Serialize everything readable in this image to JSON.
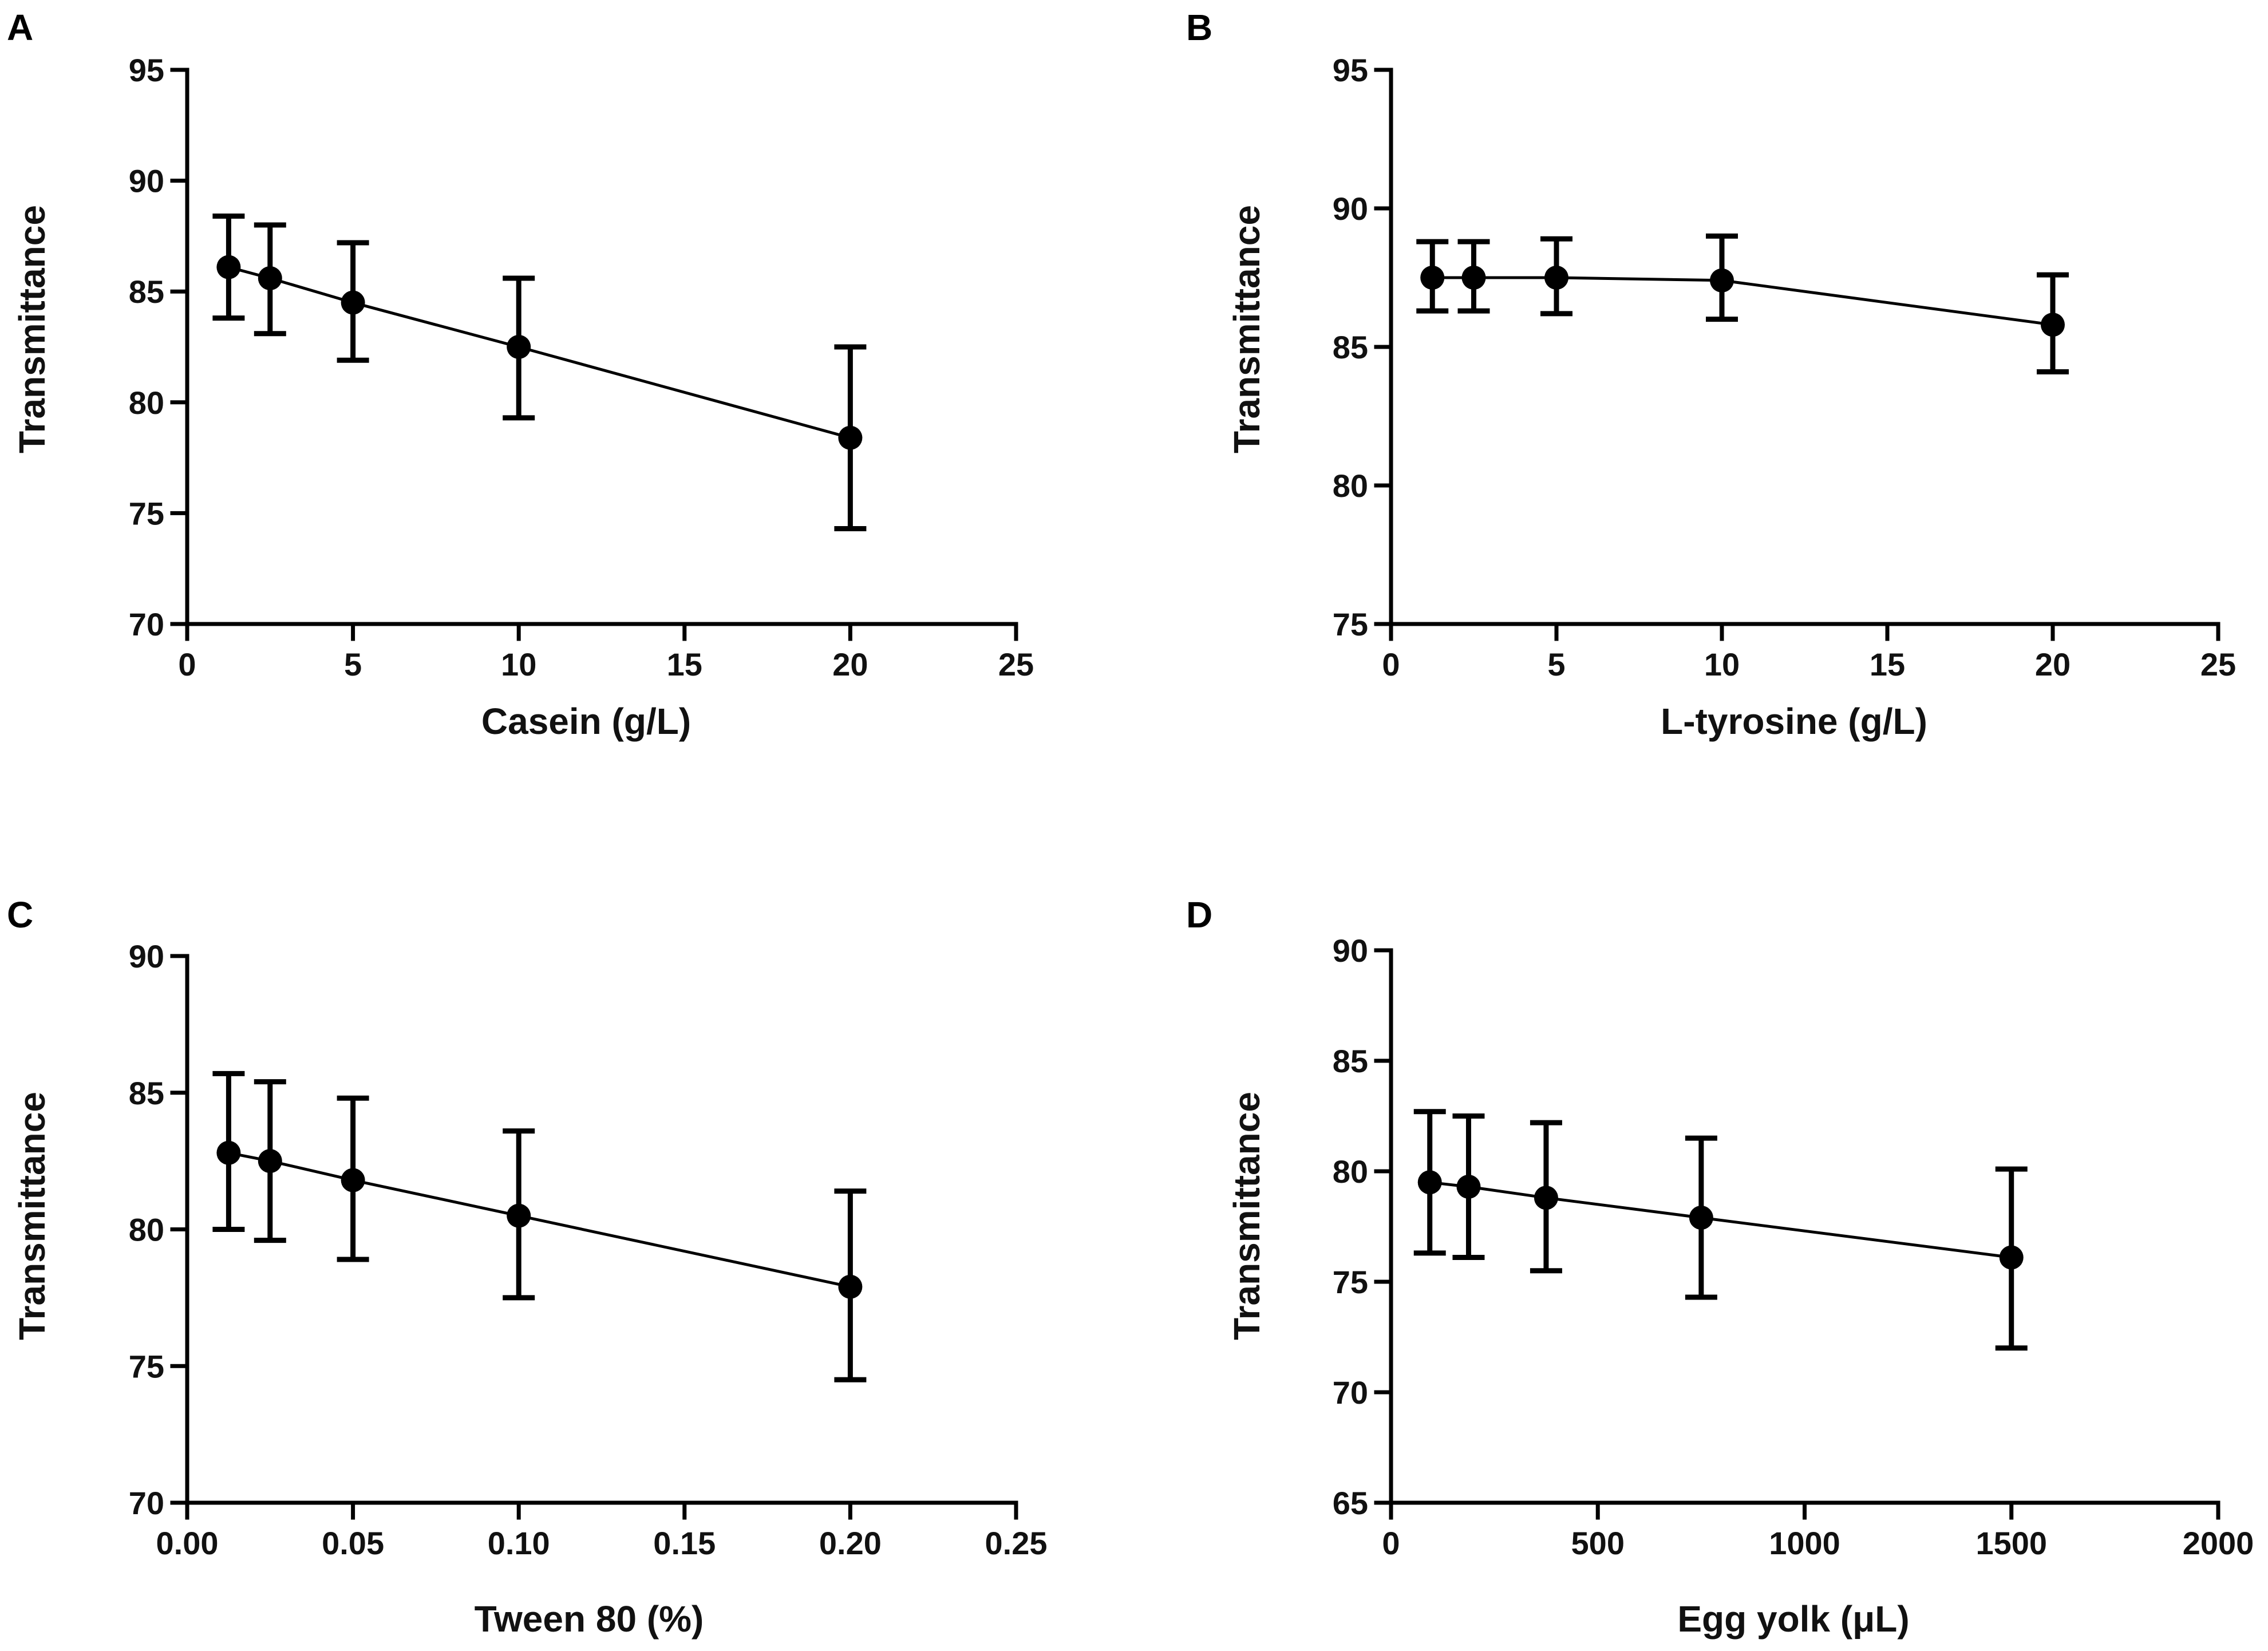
{
  "chart_data": [
    {
      "panel": "A",
      "type": "line",
      "title": "",
      "xlabel": "Casein (g/L)",
      "ylabel": "Transmittance",
      "xlim": [
        0,
        25
      ],
      "ylim": [
        70,
        95
      ],
      "xticks": [
        "0",
        "5",
        "10",
        "15",
        "20",
        "25"
      ],
      "yticks": [
        "70",
        "75",
        "80",
        "85",
        "90",
        "95"
      ],
      "x": [
        1.25,
        2.5,
        5,
        10,
        20
      ],
      "y": [
        86.1,
        85.6,
        84.5,
        82.5,
        78.4
      ],
      "err_low": [
        83.8,
        83.1,
        81.9,
        79.3,
        74.3
      ],
      "err_high": [
        88.4,
        88.0,
        87.2,
        85.6,
        82.5
      ],
      "grid": false
    },
    {
      "panel": "B",
      "type": "line",
      "title": "",
      "xlabel": "L-tyrosine (g/L)",
      "ylabel": "Transmittance",
      "xlim": [
        0,
        25
      ],
      "ylim": [
        75,
        95
      ],
      "xticks": [
        "0",
        "5",
        "10",
        "15",
        "20",
        "25"
      ],
      "yticks": [
        "75",
        "80",
        "85",
        "90",
        "95"
      ],
      "x": [
        1.25,
        2.5,
        5,
        10,
        20
      ],
      "y": [
        87.5,
        87.5,
        87.5,
        87.4,
        85.8
      ],
      "err_low": [
        86.3,
        86.3,
        86.2,
        86.0,
        84.1
      ],
      "err_high": [
        88.8,
        88.8,
        88.9,
        89.0,
        87.6
      ],
      "grid": false
    },
    {
      "panel": "C",
      "type": "line",
      "title": "",
      "xlabel": "Tween 80 (%)",
      "ylabel": "Transmittance",
      "xlim": [
        0,
        0.25
      ],
      "ylim": [
        70,
        90
      ],
      "xticks": [
        "0.00",
        "0.05",
        "0.10",
        "0.15",
        "0.20",
        "0.25"
      ],
      "yticks": [
        "70",
        "75",
        "80",
        "85",
        "90"
      ],
      "x": [
        0.0125,
        0.025,
        0.05,
        0.1,
        0.2
      ],
      "y": [
        82.8,
        82.5,
        81.8,
        80.5,
        77.9
      ],
      "err_low": [
        80.0,
        79.6,
        78.9,
        77.5,
        74.5
      ],
      "err_high": [
        85.7,
        85.4,
        84.8,
        83.6,
        81.4
      ],
      "grid": false
    },
    {
      "panel": "D",
      "type": "line",
      "title": "",
      "xlabel": "Egg yolk (μL)",
      "ylabel": "Transmittance",
      "xlim": [
        0,
        2000
      ],
      "ylim": [
        65,
        90
      ],
      "xticks": [
        "0",
        "500",
        "1000",
        "1500",
        "2000"
      ],
      "yticks": [
        "65",
        "70",
        "75",
        "80",
        "85",
        "90"
      ],
      "x": [
        93.75,
        187.5,
        375,
        750,
        1500
      ],
      "y": [
        79.5,
        79.3,
        78.8,
        77.9,
        76.1
      ],
      "err_low": [
        76.3,
        76.1,
        75.5,
        74.3,
        72.0
      ],
      "err_high": [
        82.7,
        82.5,
        82.2,
        81.5,
        80.1
      ],
      "grid": false
    }
  ]
}
